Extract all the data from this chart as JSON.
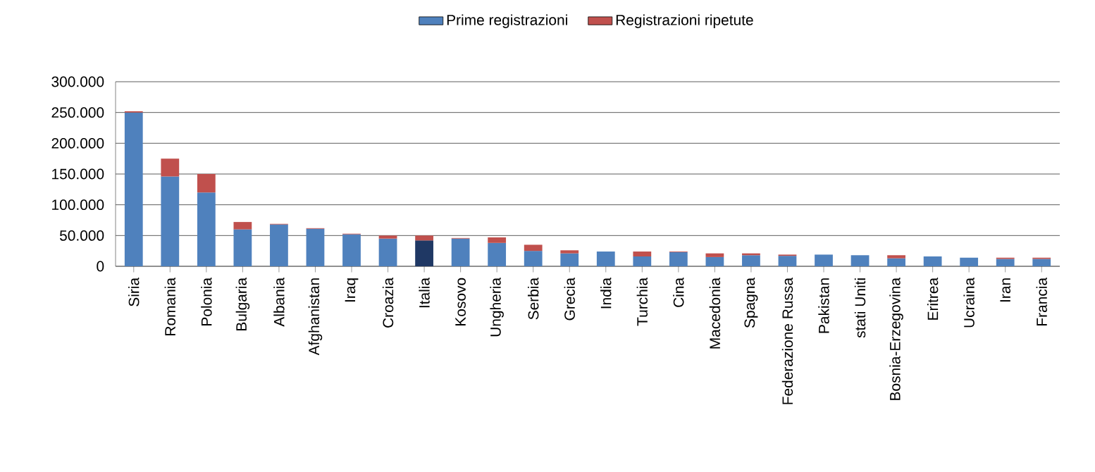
{
  "chart_data": {
    "type": "bar",
    "stacked": true,
    "legend": "top",
    "grid": "y",
    "categories": [
      "Siria",
      "Romania",
      "Polonia",
      "Bulgaria",
      "Albania",
      "Afghanistan",
      "Iraq",
      "Croazia",
      "Italia",
      "Kosovo",
      "Ungheria",
      "Serbia",
      "Grecia",
      "India",
      "Turchia",
      "Cina",
      "Macedonia",
      "Spagna",
      "Federazione Russa",
      "Pakistan",
      "stati Uniti",
      "Bosnia-Erzegovina",
      "Eritrea",
      "Ucraina",
      "Iran",
      "Francia"
    ],
    "ylim": [
      0,
      300000
    ],
    "yticks": [
      {
        "value": 0,
        "label": "0"
      },
      {
        "value": 50000,
        "label": "50.000"
      },
      {
        "value": 100000,
        "label": "100.000"
      },
      {
        "value": 150000,
        "label": "150.000"
      },
      {
        "value": 200000,
        "label": "200.000"
      },
      {
        "value": 250000,
        "label": "250.000"
      },
      {
        "value": 300000,
        "label": "300.000"
      }
    ],
    "series": [
      {
        "name": "Prime registrazioni",
        "color": "#4f81bd",
        "colors": [
          "#4f81bd",
          "#4f81bd",
          "#4f81bd",
          "#4f81bd",
          "#4f81bd",
          "#4f81bd",
          "#4f81bd",
          "#4f81bd",
          "#1f3864",
          "#4f81bd",
          "#4f81bd",
          "#4f81bd",
          "#4f81bd",
          "#4f81bd",
          "#4f81bd",
          "#4f81bd",
          "#4f81bd",
          "#4f81bd",
          "#4f81bd",
          "#4f81bd",
          "#4f81bd",
          "#4f81bd",
          "#4f81bd",
          "#4f81bd",
          "#4f81bd",
          "#4f81bd"
        ],
        "values": [
          250000,
          146000,
          120000,
          60000,
          68000,
          61000,
          52000,
          45000,
          42000,
          45000,
          38000,
          25000,
          21000,
          24000,
          16000,
          23000,
          15000,
          18000,
          17000,
          19000,
          18000,
          13000,
          16000,
          14000,
          12000,
          12000
        ]
      },
      {
        "name": "Registrazioni ripetute",
        "color": "#c0504d",
        "values": [
          2000,
          29000,
          30000,
          12000,
          1000,
          1000,
          1000,
          5000,
          8000,
          1000,
          9000,
          10000,
          5000,
          0,
          8000,
          1000,
          6000,
          3000,
          2000,
          0,
          0,
          5000,
          0,
          0,
          2000,
          2000
        ]
      }
    ]
  }
}
